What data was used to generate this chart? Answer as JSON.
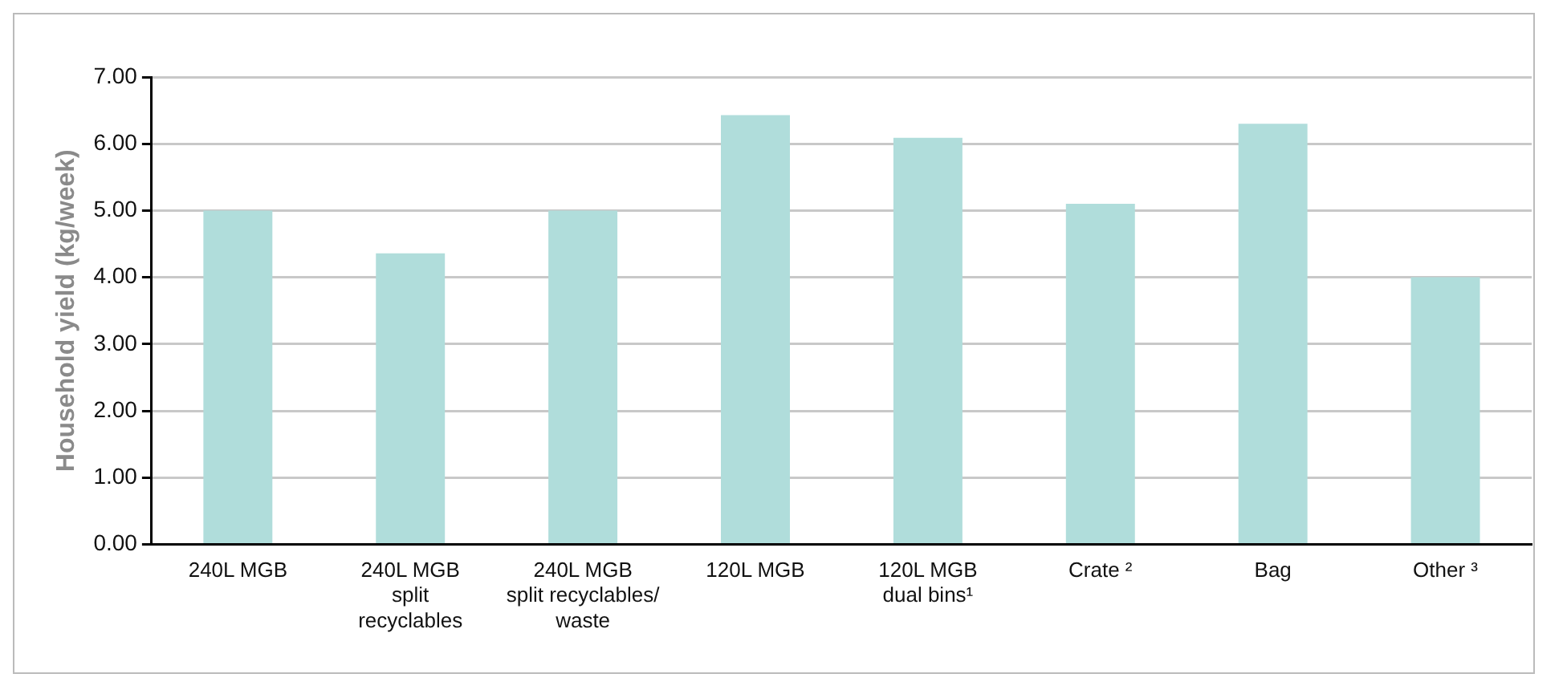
{
  "chart_data": {
    "type": "bar",
    "ylabel": "Household yield (kg/week)",
    "categories": [
      "240L MGB",
      "240L MGB\nsplit\nrecyclables",
      "240L MGB\nsplit recyclables/\nwaste",
      "120L MGB",
      "120L MGB\ndual bins¹",
      "Crate ²",
      "Bag",
      "Other ³"
    ],
    "values": [
      5.0,
      4.36,
      5.0,
      6.43,
      6.09,
      5.1,
      6.3,
      4.0
    ],
    "color": "#b0dddb",
    "ylim": [
      0,
      7
    ],
    "yticks": [
      {
        "value": 0,
        "label": "0.00"
      },
      {
        "value": 1,
        "label": "1.00"
      },
      {
        "value": 2,
        "label": "2.00"
      },
      {
        "value": 3,
        "label": "3.00"
      },
      {
        "value": 4,
        "label": "4.00"
      },
      {
        "value": 5,
        "label": "5.00"
      },
      {
        "value": 6,
        "label": "6.00"
      },
      {
        "value": 7,
        "label": "7.00"
      }
    ],
    "grid": "y",
    "legend": false
  }
}
